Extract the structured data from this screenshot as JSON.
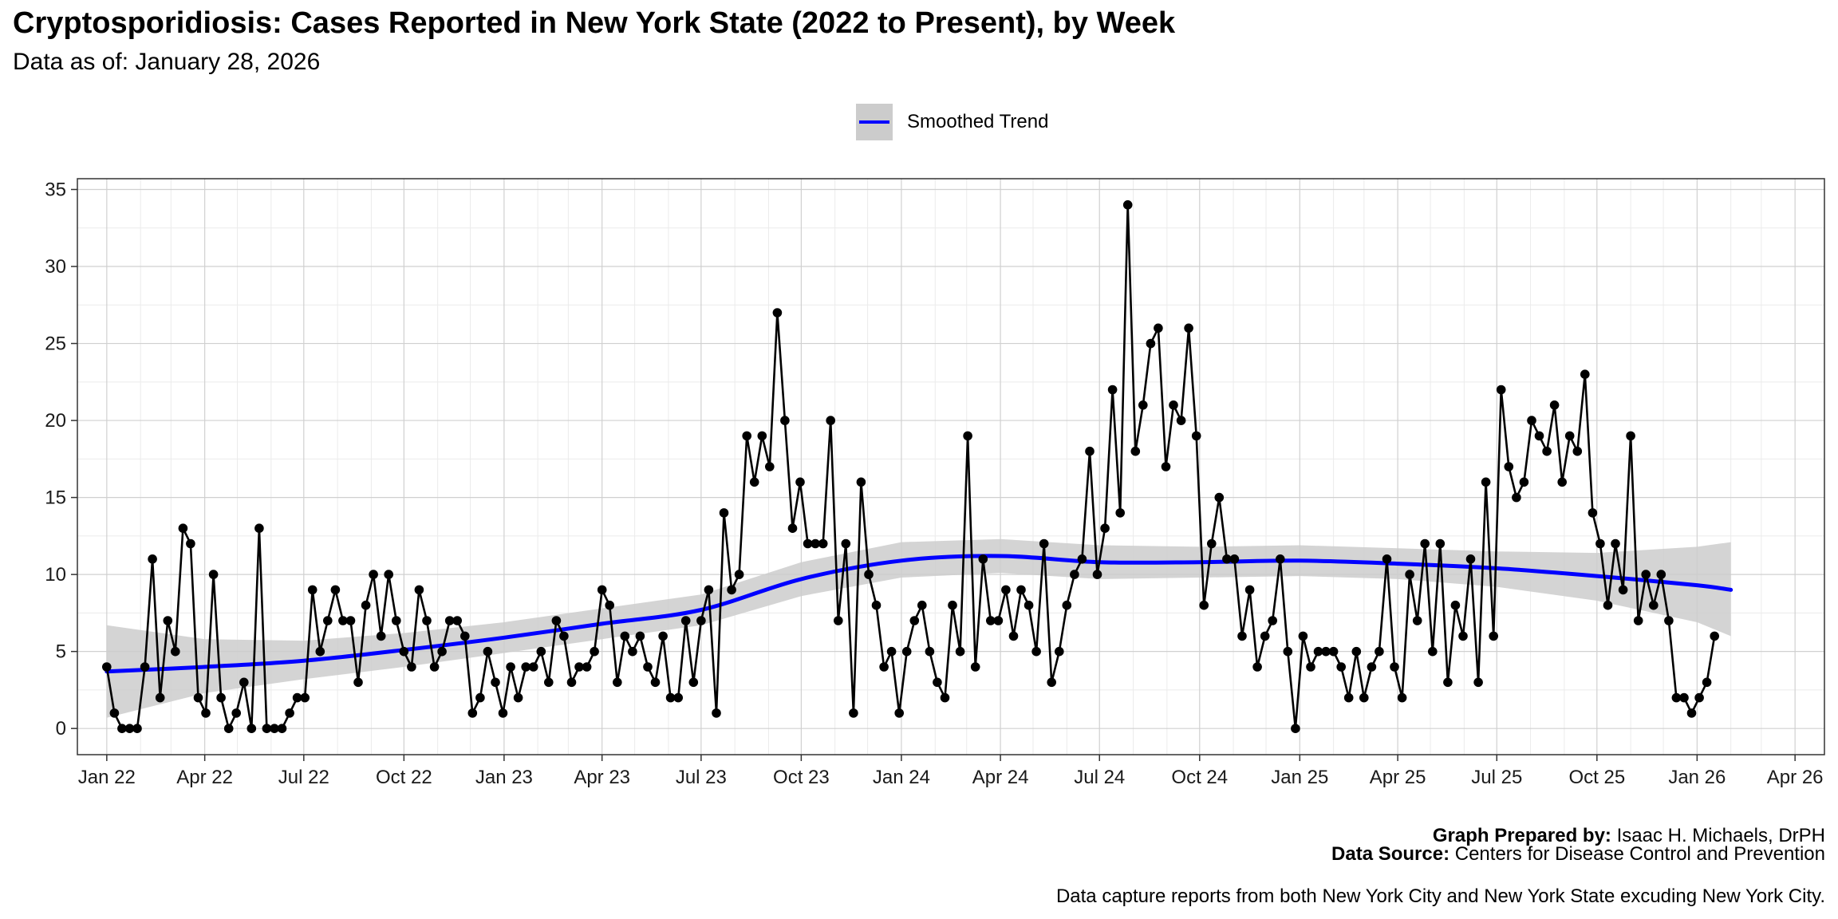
{
  "title": "Cryptosporidiosis: Cases Reported in New York State (2022 to Present), by Week",
  "subtitle": "Data as of: January 28, 2026",
  "legend": {
    "label": "Smoothed Trend"
  },
  "caption": {
    "prepared_by_label": "Graph Prepared by:",
    "prepared_by": "Isaac H. Michaels, DrPH",
    "source_label": "Data Source:",
    "source": "Centers for Disease Control and Prevention",
    "note": "Data capture reports from both New York City and New York State excuding New York City."
  },
  "chart_data": {
    "type": "line",
    "title": "Cryptosporidiosis: Cases Reported in New York State (2022 to Present), by Week",
    "subtitle": "Data as of: January 28, 2026",
    "xlabel": "",
    "ylabel": "",
    "x_type": "date",
    "xlim": [
      "2021-12-05",
      "2026-04-28"
    ],
    "ylim": [
      -1.7,
      35.7
    ],
    "y_ticks": [
      0,
      5,
      10,
      15,
      20,
      25,
      30,
      35
    ],
    "x_ticks": [
      {
        "date": "2022-01-01",
        "label": "Jan 22"
      },
      {
        "date": "2022-04-01",
        "label": "Apr 22"
      },
      {
        "date": "2022-07-01",
        "label": "Jul 22"
      },
      {
        "date": "2022-10-01",
        "label": "Oct 22"
      },
      {
        "date": "2023-01-01",
        "label": "Jan 23"
      },
      {
        "date": "2023-04-01",
        "label": "Apr 23"
      },
      {
        "date": "2023-07-01",
        "label": "Jul 23"
      },
      {
        "date": "2023-10-01",
        "label": "Oct 23"
      },
      {
        "date": "2024-01-01",
        "label": "Jan 24"
      },
      {
        "date": "2024-04-01",
        "label": "Apr 24"
      },
      {
        "date": "2024-07-01",
        "label": "Jul 24"
      },
      {
        "date": "2024-10-01",
        "label": "Oct 24"
      },
      {
        "date": "2025-01-01",
        "label": "Jan 25"
      },
      {
        "date": "2025-04-01",
        "label": "Apr 25"
      },
      {
        "date": "2025-07-01",
        "label": "Jul 25"
      },
      {
        "date": "2025-10-01",
        "label": "Oct 25"
      },
      {
        "date": "2026-01-01",
        "label": "Jan 26"
      },
      {
        "date": "2026-04-01",
        "label": "Apr 26"
      }
    ],
    "grid": true,
    "legend_position": "top",
    "series": [
      {
        "type": "line+points",
        "color": "#000000",
        "start_date": "2022-01-01",
        "interval_days": 7,
        "values": [
          4,
          1,
          0,
          0,
          0,
          4,
          11,
          2,
          7,
          5,
          13,
          12,
          2,
          1,
          10,
          2,
          0,
          1,
          3,
          0,
          13,
          0,
          0,
          0,
          1,
          2,
          2,
          9,
          5,
          7,
          9,
          7,
          7,
          3,
          8,
          10,
          6,
          10,
          7,
          5,
          4,
          9,
          7,
          4,
          5,
          7,
          7,
          6,
          1,
          2,
          5,
          3,
          1,
          4,
          2,
          4,
          4,
          5,
          3,
          7,
          6,
          3,
          4,
          4,
          5,
          9,
          8,
          3,
          6,
          5,
          6,
          4,
          3,
          6,
          2,
          2,
          7,
          3,
          7,
          9,
          1,
          14,
          9,
          10,
          19,
          16,
          19,
          17,
          27,
          20,
          13,
          16,
          12,
          12,
          12,
          20,
          7,
          12,
          1,
          16,
          10,
          8,
          4,
          5,
          1,
          5,
          7,
          8,
          5,
          3,
          2,
          8,
          5,
          19,
          4,
          11,
          7,
          7,
          9,
          6,
          9,
          8,
          5,
          12,
          3,
          5,
          8,
          10,
          11,
          18,
          10,
          13,
          22,
          14,
          34,
          18,
          21,
          25,
          26,
          17,
          21,
          20,
          26,
          19,
          8,
          12,
          15,
          11,
          11,
          6,
          9,
          4,
          6,
          7,
          11,
          5,
          0,
          6,
          4,
          5,
          5,
          5,
          4,
          2,
          5,
          2,
          4,
          5,
          11,
          4,
          2,
          10,
          7,
          12,
          5,
          12,
          3,
          8,
          6,
          11,
          3,
          16,
          6,
          22,
          17,
          15,
          16,
          20,
          19,
          18,
          21,
          16,
          19,
          18,
          23,
          14,
          12,
          8,
          12,
          9,
          19,
          7,
          10,
          8,
          10,
          7,
          2,
          2,
          1,
          2,
          3,
          6
        ]
      },
      {
        "name": "Smoothed Trend",
        "type": "smooth",
        "color": "#0000ff",
        "band_color": "#cccccc",
        "points": [
          {
            "date": "2022-01-01",
            "y": 3.7,
            "lo": 0.7,
            "hi": 6.7
          },
          {
            "date": "2022-04-01",
            "y": 4.0,
            "lo": 2.3,
            "hi": 5.8
          },
          {
            "date": "2022-07-01",
            "y": 4.4,
            "lo": 3.2,
            "hi": 5.7
          },
          {
            "date": "2022-10-01",
            "y": 5.1,
            "lo": 4.0,
            "hi": 6.2
          },
          {
            "date": "2023-01-01",
            "y": 5.9,
            "lo": 4.9,
            "hi": 6.9
          },
          {
            "date": "2023-04-01",
            "y": 6.8,
            "lo": 5.8,
            "hi": 7.8
          },
          {
            "date": "2023-07-01",
            "y": 7.7,
            "lo": 6.7,
            "hi": 8.7
          },
          {
            "date": "2023-10-01",
            "y": 9.7,
            "lo": 8.6,
            "hi": 10.8
          },
          {
            "date": "2024-01-01",
            "y": 10.9,
            "lo": 9.8,
            "hi": 12.1
          },
          {
            "date": "2024-04-01",
            "y": 11.2,
            "lo": 10.1,
            "hi": 12.3
          },
          {
            "date": "2024-07-01",
            "y": 10.8,
            "lo": 9.7,
            "hi": 11.9
          },
          {
            "date": "2024-10-01",
            "y": 10.8,
            "lo": 9.8,
            "hi": 11.8
          },
          {
            "date": "2025-01-01",
            "y": 10.9,
            "lo": 9.9,
            "hi": 11.9
          },
          {
            "date": "2025-04-01",
            "y": 10.7,
            "lo": 9.7,
            "hi": 11.7
          },
          {
            "date": "2025-07-01",
            "y": 10.4,
            "lo": 9.2,
            "hi": 11.5
          },
          {
            "date": "2025-10-01",
            "y": 9.9,
            "lo": 8.3,
            "hi": 11.4
          },
          {
            "date": "2026-01-01",
            "y": 9.3,
            "lo": 6.9,
            "hi": 11.8
          },
          {
            "date": "2026-02-01",
            "y": 9.0,
            "lo": 6.0,
            "hi": 12.1
          }
        ]
      }
    ]
  }
}
